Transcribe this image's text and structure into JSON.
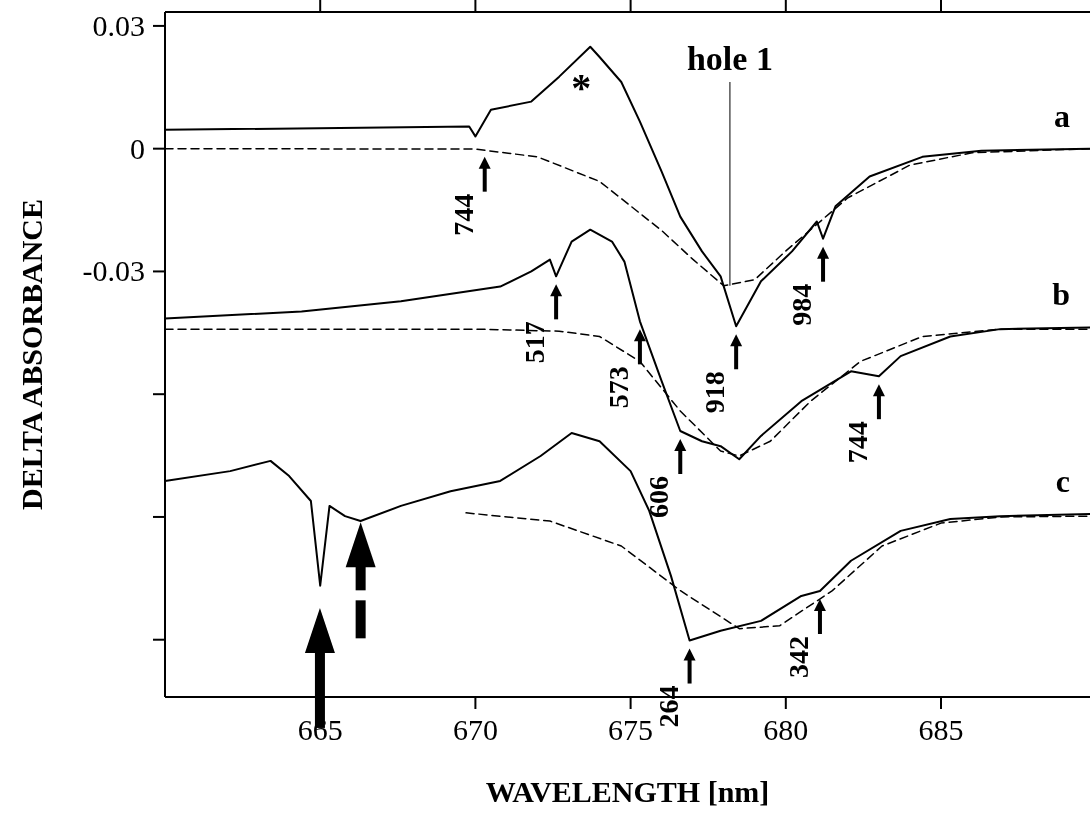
{
  "chart_data": {
    "type": "line",
    "xlabel": "WAVELENGTH [nm]",
    "ylabel": "DELTA ABSORBANCE",
    "xlim": [
      660,
      689.8
    ],
    "ylim": [
      -0.134,
      0.0334
    ],
    "xticks": [
      665,
      670,
      675,
      680,
      685
    ],
    "yticks": [
      0.03,
      0,
      -0.03,
      {
        "value": -0.06,
        "label": null
      },
      {
        "value": -0.09,
        "label": null
      },
      {
        "value": -0.12,
        "label": null
      }
    ],
    "grid": false,
    "marker": "none",
    "series": [
      {
        "name": "a",
        "color": "#000000",
        "line_style": "solid",
        "x": [
          660,
          669.8,
          670.0,
          670.5,
          671.8,
          672.7,
          673.7,
          674.0,
          674.7,
          675.3,
          676.0,
          676.6,
          677.3,
          677.9,
          678.4,
          679.2,
          680.2,
          681.0,
          681.2,
          681.6,
          682.7,
          684.4,
          686.3,
          689.8
        ],
        "values": [
          0.0046,
          0.0054,
          0.003,
          0.0095,
          0.0115,
          0.0176,
          0.0249,
          0.0224,
          0.0163,
          0.0066,
          -0.0056,
          -0.0166,
          -0.0251,
          -0.0312,
          -0.0434,
          -0.0324,
          -0.0251,
          -0.0178,
          -0.022,
          -0.0141,
          -0.0068,
          -0.002,
          -0.0005,
          0
        ]
      },
      {
        "color": "#000000",
        "line_style": "dashed",
        "x": [
          660,
          670,
          672,
          674,
          676,
          677,
          678,
          679,
          680,
          682,
          684,
          686,
          689.8
        ],
        "values": [
          0,
          -0.0001,
          -0.002,
          -0.008,
          -0.02,
          -0.027,
          -0.0335,
          -0.032,
          -0.025,
          -0.012,
          -0.004,
          -0.001,
          0
        ]
      },
      {
        "name": "b",
        "color": "#000000",
        "line_style": "solid",
        "x": [
          660,
          664.4,
          667.6,
          670.8,
          671.8,
          672.4,
          672.6,
          673.1,
          673.7,
          674.4,
          674.8,
          675.3,
          676.0,
          676.6,
          677.3,
          677.9,
          678.5,
          679.2,
          680.5,
          682.1,
          683.0,
          683.7,
          685.3,
          686.9,
          689.8
        ],
        "values": [
          -0.0415,
          -0.0398,
          -0.0373,
          -0.0337,
          -0.03,
          -0.0271,
          -0.0312,
          -0.0227,
          -0.0198,
          -0.0227,
          -0.0276,
          -0.0422,
          -0.0568,
          -0.069,
          -0.0715,
          -0.0727,
          -0.0759,
          -0.0702,
          -0.0617,
          -0.0544,
          -0.0556,
          -0.0507,
          -0.0459,
          -0.0441,
          -0.0437
        ]
      },
      {
        "color": "#000000",
        "line_style": "dashed",
        "x": [
          660,
          670,
          672.7,
          674.0,
          675.3,
          676.6,
          677.9,
          678.5,
          679.5,
          680.8,
          682.4,
          684.4,
          686.9,
          689.8
        ],
        "values": [
          -0.0441,
          -0.0441,
          -0.0446,
          -0.0459,
          -0.052,
          -0.0641,
          -0.0739,
          -0.0751,
          -0.0715,
          -0.0617,
          -0.052,
          -0.0459,
          -0.0441,
          -0.0441
        ]
      },
      {
        "name": "c",
        "color": "#000000",
        "line_style": "solid",
        "x": [
          660,
          662.1,
          663.4,
          664.0,
          664.7,
          665.0,
          665.3,
          665.8,
          666.3,
          667.6,
          669.2,
          670.8,
          672.1,
          673.1,
          674.0,
          675.0,
          675.6,
          676.3,
          676.9,
          677.9,
          679.2,
          680.5,
          681.1,
          682.1,
          683.7,
          685.3,
          686.9,
          689.8
        ],
        "values": [
          -0.0812,
          -0.0788,
          -0.0763,
          -0.08,
          -0.0861,
          -0.1068,
          -0.0873,
          -0.0898,
          -0.091,
          -0.0873,
          -0.0837,
          -0.0812,
          -0.0751,
          -0.0695,
          -0.0715,
          -0.0788,
          -0.0885,
          -0.1044,
          -0.1202,
          -0.1178,
          -0.1154,
          -0.1093,
          -0.1081,
          -0.1007,
          -0.0934,
          -0.0905,
          -0.0898,
          -0.0893
        ]
      },
      {
        "color": "#000000",
        "line_style": "dashed",
        "x": [
          669.7,
          672.4,
          674.7,
          676.6,
          678.5,
          679.8,
          681.5,
          683.1,
          685.0,
          686.9,
          689.8
        ],
        "values": [
          -0.089,
          -0.091,
          -0.0971,
          -0.108,
          -0.1173,
          -0.1166,
          -0.108,
          -0.0971,
          -0.0915,
          -0.09,
          -0.0898
        ]
      }
    ],
    "annotations": [
      {
        "text": "hole 1",
        "x": 678.2,
        "y": -0.0335
      },
      "*",
      {
        "text": "744",
        "x": 670.3,
        "y": 0
      },
      {
        "text": "984",
        "x": 681.2,
        "y": -0.022
      },
      {
        "text": "918",
        "x": 678.4,
        "y": -0.0434
      },
      {
        "text": "517",
        "x": 672.6,
        "y": -0.0312
      },
      {
        "text": "573",
        "x": 675.3,
        "y": -0.0422
      },
      {
        "text": "606",
        "x": 676.6,
        "y": -0.069
      },
      {
        "text": "744",
        "x": 683.0,
        "y": -0.0556
      },
      {
        "text": "264",
        "x": 676.9,
        "y": -0.1202
      },
      {
        "text": "342",
        "x": 681.1,
        "y": -0.1081
      }
    ]
  }
}
